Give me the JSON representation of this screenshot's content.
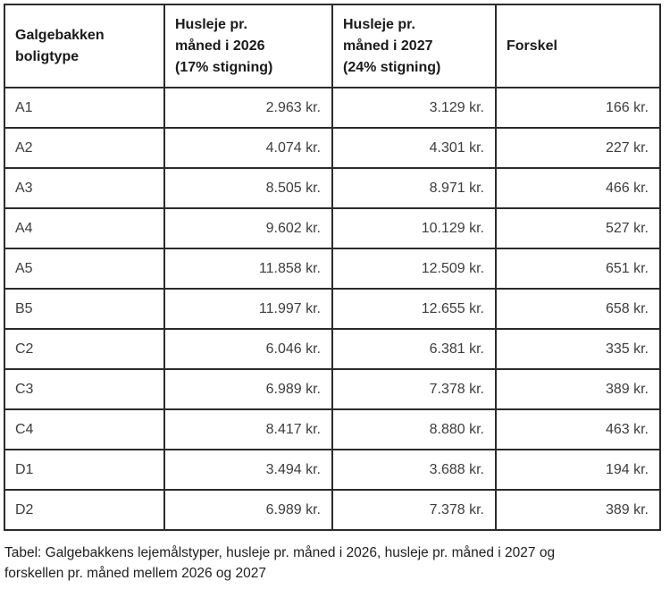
{
  "table": {
    "headers": [
      "Galgebakken\nboligtype",
      "Husleje pr.\nmåned i 2026\n(17% stigning)",
      "Husleje pr.\nmåned i 2027\n(24% stigning)",
      "Forskel"
    ],
    "rows": [
      {
        "type": "A1",
        "rent_2026": "2.963 kr.",
        "rent_2027": "3.129 kr.",
        "difference": "166 kr."
      },
      {
        "type": "A2",
        "rent_2026": "4.074 kr.",
        "rent_2027": "4.301 kr.",
        "difference": "227 kr."
      },
      {
        "type": "A3",
        "rent_2026": "8.505 kr.",
        "rent_2027": "8.971 kr.",
        "difference": "466 kr."
      },
      {
        "type": "A4",
        "rent_2026": "9.602 kr.",
        "rent_2027": "10.129 kr.",
        "difference": "527 kr."
      },
      {
        "type": "A5",
        "rent_2026": "11.858 kr.",
        "rent_2027": "12.509 kr.",
        "difference": "651 kr."
      },
      {
        "type": "B5",
        "rent_2026": "11.997 kr.",
        "rent_2027": "12.655 kr.",
        "difference": "658 kr."
      },
      {
        "type": "C2",
        "rent_2026": "6.046 kr.",
        "rent_2027": "6.381 kr.",
        "difference": "335 kr."
      },
      {
        "type": "C3",
        "rent_2026": "6.989 kr.",
        "rent_2027": "7.378 kr.",
        "difference": "389 kr."
      },
      {
        "type": "C4",
        "rent_2026": "8.417 kr.",
        "rent_2027": "8.880 kr.",
        "difference": "463 kr."
      },
      {
        "type": "D1",
        "rent_2026": "3.494 kr.",
        "rent_2027": "3.688 kr.",
        "difference": "194 kr."
      },
      {
        "type": "D2",
        "rent_2026": "6.989 kr.",
        "rent_2027": "7.378 kr.",
        "difference": "389 kr."
      }
    ]
  },
  "caption": {
    "text": "Tabel: Galgebakkens lejemålstyper, husleje pr. måned i 2026, husleje pr. måned i 2027 og\nforskellen pr. måned mellem 2026 og 2027"
  },
  "chart_data": {
    "type": "table",
    "title": "Galgebakkens lejemålstyper, husleje pr. måned i 2026 og 2027",
    "columns": [
      "Galgebakken boligtype",
      "Husleje pr. måned i 2026 (17% stigning)",
      "Husleje pr. måned i 2027 (24% stigning)",
      "Forskel"
    ],
    "categories": [
      "A1",
      "A2",
      "A3",
      "A4",
      "A5",
      "B5",
      "C2",
      "C3",
      "C4",
      "D1",
      "D2"
    ],
    "series": [
      {
        "name": "Husleje pr. måned i 2026 (kr.)",
        "values": [
          2963,
          4074,
          8505,
          9602,
          11858,
          11997,
          6046,
          6989,
          8417,
          3494,
          6989
        ]
      },
      {
        "name": "Husleje pr. måned i 2027 (kr.)",
        "values": [
          3129,
          4301,
          8971,
          10129,
          12509,
          12655,
          6381,
          7378,
          8880,
          3688,
          7378
        ]
      },
      {
        "name": "Forskel (kr.)",
        "values": [
          166,
          227,
          466,
          527,
          651,
          658,
          335,
          389,
          463,
          194,
          389
        ]
      }
    ]
  },
  "colors": {
    "border": "#2b2b2b",
    "header_text": "#1a1a1a",
    "cell_text": "#3d3d3d",
    "background": "#ffffff"
  }
}
